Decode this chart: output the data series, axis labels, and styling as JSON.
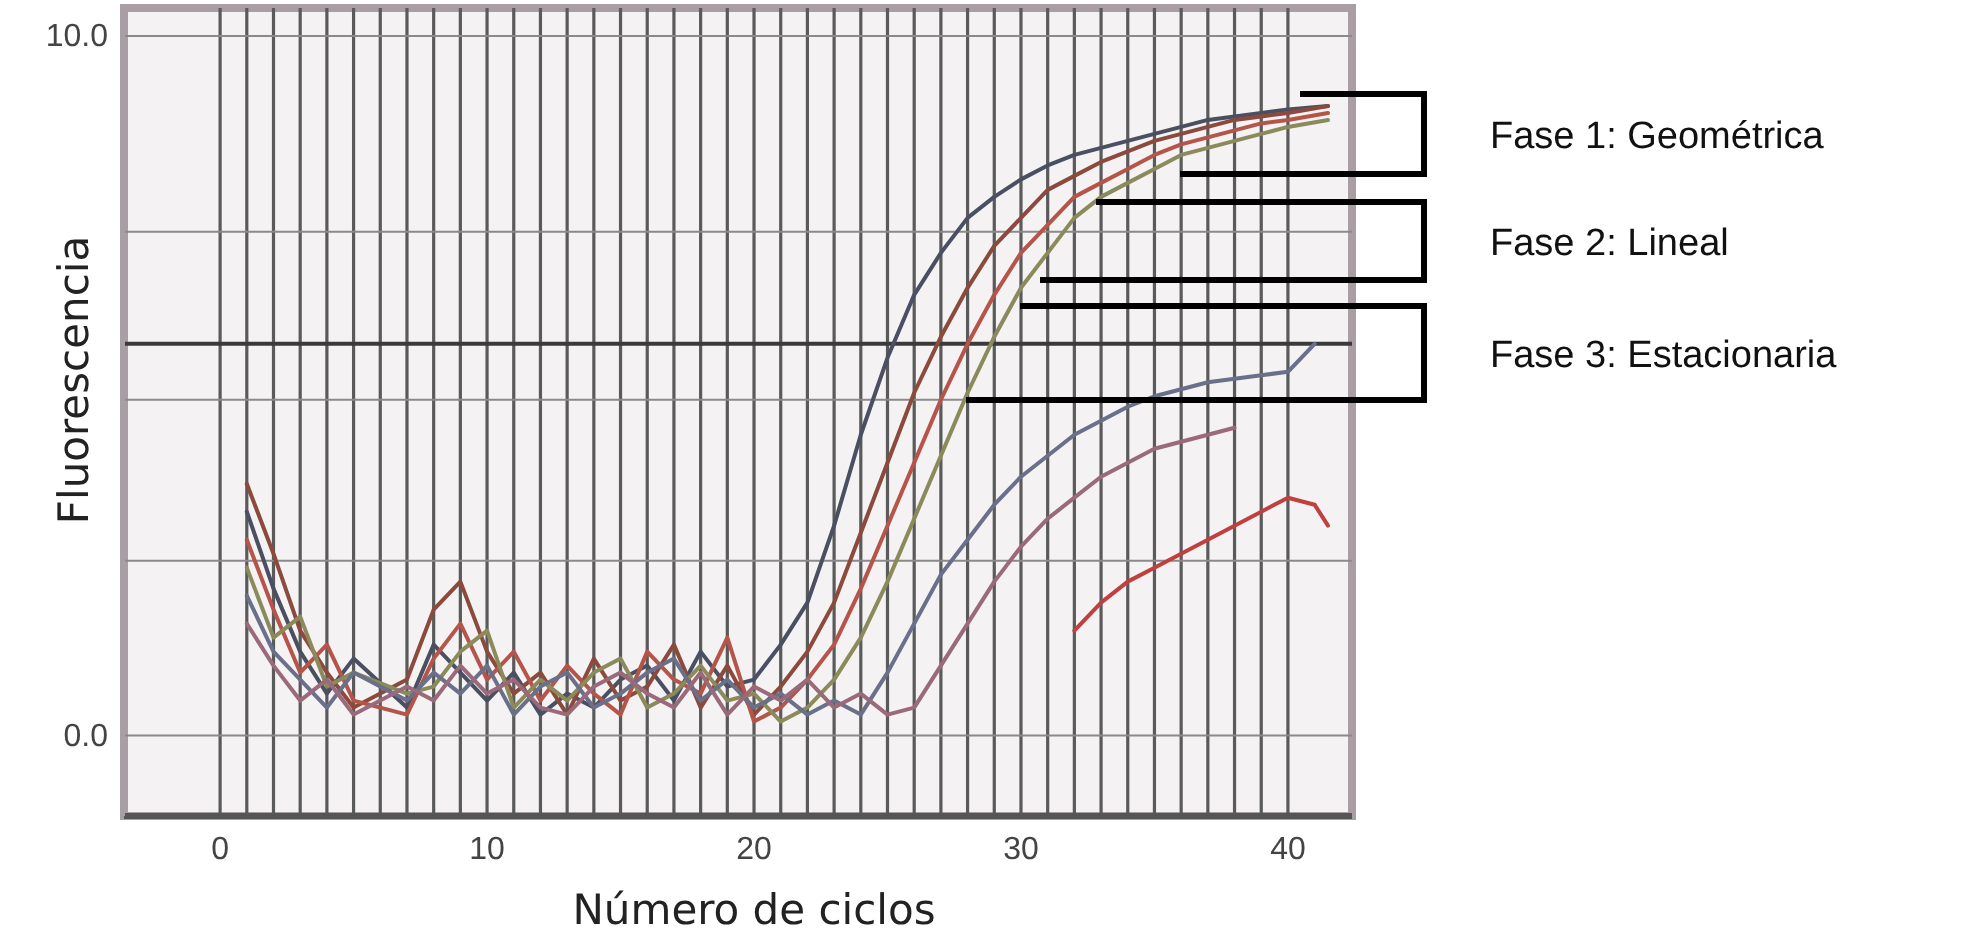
{
  "chart_data": {
    "type": "line",
    "xlabel": "Número de ciclos",
    "ylabel": "Fluorescencia",
    "xlim": [
      -3.6,
      42.4
    ],
    "ylim": [
      -1.15,
      10.4
    ],
    "xticks": [
      0,
      {
        "value": 1,
        "label": null
      },
      {
        "value": 2,
        "label": null
      },
      {
        "value": 3,
        "label": null
      },
      {
        "value": 4,
        "label": null
      },
      {
        "value": 5,
        "label": null
      },
      {
        "value": 6,
        "label": null
      },
      {
        "value": 7,
        "label": null
      },
      {
        "value": 8,
        "label": null
      },
      {
        "value": 9,
        "label": null
      },
      10,
      {
        "value": 11,
        "label": null
      },
      {
        "value": 12,
        "label": null
      },
      {
        "value": 13,
        "label": null
      },
      {
        "value": 14,
        "label": null
      },
      {
        "value": 15,
        "label": null
      },
      {
        "value": 16,
        "label": null
      },
      {
        "value": 17,
        "label": null
      },
      {
        "value": 18,
        "label": null
      },
      {
        "value": 19,
        "label": null
      },
      20,
      {
        "value": 21,
        "label": null
      },
      {
        "value": 22,
        "label": null
      },
      {
        "value": 23,
        "label": null
      },
      {
        "value": 24,
        "label": null
      },
      {
        "value": 25,
        "label": null
      },
      {
        "value": 26,
        "label": null
      },
      {
        "value": 27,
        "label": null
      },
      {
        "value": 28,
        "label": null
      },
      {
        "value": 29,
        "label": null
      },
      30,
      {
        "value": 31,
        "label": null
      },
      {
        "value": 32,
        "label": null
      },
      {
        "value": 33,
        "label": null
      },
      {
        "value": 34,
        "label": null
      },
      {
        "value": 35,
        "label": null
      },
      {
        "value": 36,
        "label": null
      },
      {
        "value": 37,
        "label": null
      },
      {
        "value": 38,
        "label": null
      },
      {
        "value": 39,
        "label": null
      },
      40
    ],
    "yticks": [
      {
        "value": 0,
        "label": "0.0"
      },
      {
        "value": 2.5,
        "label": null
      },
      {
        "value": 4.8,
        "label": null
      },
      {
        "value": 7.2,
        "label": null
      },
      {
        "value": 10,
        "label": "10.0"
      }
    ],
    "grid": true,
    "ref_lines": [
      {
        "axis": "y",
        "value": 5.6,
        "color": "#3a3a3a"
      }
    ],
    "annotations": [
      "Fase 1: Geométrica",
      "Fase 2: Lineal",
      "Fase 3: Estacionaria"
    ],
    "series": [
      {
        "color": "#4a4f62",
        "x": [
          1,
          2,
          3,
          4,
          5,
          7,
          8,
          9,
          10,
          11,
          12,
          13,
          14,
          15,
          16,
          17,
          18,
          19,
          20,
          21,
          22,
          23,
          24,
          25,
          26,
          27,
          28,
          29,
          30,
          31,
          32,
          33,
          34,
          35,
          36,
          37,
          38,
          39,
          40,
          41.5
        ],
        "values": [
          3.2,
          2.1,
          1.2,
          0.6,
          1.1,
          0.4,
          1.3,
          0.9,
          0.5,
          0.9,
          0.3,
          0.6,
          0.4,
          0.8,
          1.0,
          0.5,
          1.2,
          0.7,
          0.8,
          1.3,
          1.9,
          3.0,
          4.3,
          5.4,
          6.3,
          6.9,
          7.4,
          7.7,
          7.95,
          8.15,
          8.3,
          8.4,
          8.5,
          8.6,
          8.7,
          8.8,
          8.85,
          8.9,
          8.95,
          9.0
        ]
      },
      {
        "color": "#8b4a3c",
        "x": [
          1,
          2,
          3,
          4,
          5,
          7,
          8,
          9,
          10,
          11,
          12,
          13,
          14,
          15,
          16,
          17,
          18,
          19,
          20,
          21,
          22,
          23,
          24,
          25,
          26,
          27,
          28,
          29,
          30,
          31,
          32,
          33,
          34,
          35,
          36,
          37,
          38,
          39,
          40,
          41.5
        ],
        "values": [
          3.6,
          2.6,
          1.5,
          0.9,
          0.4,
          0.8,
          1.8,
          2.2,
          1.2,
          0.6,
          0.9,
          0.3,
          1.1,
          0.5,
          0.7,
          1.3,
          0.4,
          1.0,
          0.3,
          0.7,
          1.2,
          1.9,
          2.9,
          3.9,
          4.9,
          5.7,
          6.4,
          7.0,
          7.4,
          7.8,
          8.0,
          8.2,
          8.35,
          8.5,
          8.6,
          8.7,
          8.8,
          8.85,
          8.9,
          9.0
        ]
      },
      {
        "color": "#b5554a",
        "x": [
          1,
          2,
          3,
          4,
          5,
          7,
          8,
          9,
          10,
          11,
          12,
          13,
          14,
          15,
          16,
          17,
          18,
          19,
          20,
          21,
          22,
          23,
          24,
          25,
          26,
          27,
          28,
          29,
          30,
          31,
          32,
          33,
          34,
          35,
          36,
          37,
          38,
          39,
          40,
          41.5
        ],
        "values": [
          2.8,
          1.8,
          0.9,
          1.3,
          0.5,
          0.3,
          1.1,
          1.6,
          0.8,
          1.2,
          0.5,
          1.0,
          0.6,
          0.3,
          1.2,
          0.8,
          0.6,
          1.4,
          0.2,
          0.4,
          0.8,
          1.3,
          2.1,
          3.0,
          3.9,
          4.8,
          5.6,
          6.3,
          6.9,
          7.3,
          7.7,
          7.9,
          8.1,
          8.3,
          8.45,
          8.55,
          8.65,
          8.75,
          8.8,
          8.9
        ]
      },
      {
        "color": "#8a8a5a",
        "x": [
          1,
          2,
          3,
          4,
          5,
          7,
          8,
          9,
          10,
          11,
          12,
          13,
          14,
          15,
          16,
          17,
          18,
          19,
          20,
          21,
          22,
          23,
          24,
          25,
          26,
          27,
          28,
          29,
          30,
          31,
          32,
          33,
          34,
          35,
          36,
          37,
          38,
          39,
          40,
          41.5
        ],
        "values": [
          2.4,
          1.4,
          1.7,
          0.7,
          0.9,
          0.6,
          0.7,
          1.2,
          1.5,
          0.4,
          0.8,
          0.5,
          0.9,
          1.1,
          0.4,
          0.6,
          1.0,
          0.5,
          0.6,
          0.2,
          0.4,
          0.8,
          1.4,
          2.2,
          3.1,
          4.0,
          4.9,
          5.7,
          6.4,
          6.9,
          7.4,
          7.7,
          7.9,
          8.1,
          8.3,
          8.4,
          8.5,
          8.6,
          8.7,
          8.8
        ]
      },
      {
        "color": "#6a6f8a",
        "x": [
          1,
          2,
          3,
          4,
          5,
          7,
          8,
          9,
          10,
          11,
          12,
          13,
          14,
          15,
          16,
          17,
          18,
          19,
          20,
          21,
          22,
          23,
          24,
          25,
          26,
          27,
          28,
          29,
          30,
          31,
          32,
          33,
          34,
          35,
          36,
          37,
          38,
          39,
          40,
          41
        ],
        "values": [
          2.0,
          1.2,
          0.8,
          0.4,
          0.9,
          0.5,
          0.9,
          0.6,
          1.0,
          0.3,
          0.7,
          0.9,
          0.4,
          0.6,
          0.9,
          1.1,
          0.5,
          0.8,
          0.4,
          0.6,
          0.3,
          0.5,
          0.3,
          0.9,
          1.6,
          2.3,
          2.8,
          3.3,
          3.7,
          4.0,
          4.3,
          4.5,
          4.7,
          4.85,
          4.95,
          5.05,
          5.1,
          5.15,
          5.2,
          5.6
        ]
      },
      {
        "color": "#9a6a7a",
        "x": [
          1,
          2,
          3,
          4,
          5,
          7,
          8,
          9,
          10,
          11,
          12,
          13,
          14,
          15,
          16,
          17,
          18,
          19,
          20,
          21,
          22,
          23,
          24,
          25,
          26,
          27,
          28,
          29,
          30,
          31,
          32,
          33,
          34,
          35,
          36,
          37,
          38
        ],
        "values": [
          1.6,
          1.0,
          0.5,
          0.8,
          0.3,
          0.7,
          0.5,
          1.0,
          0.6,
          0.8,
          0.4,
          0.3,
          0.7,
          0.9,
          0.6,
          0.4,
          0.9,
          0.3,
          0.7,
          0.5,
          0.8,
          0.4,
          0.6,
          0.3,
          0.4,
          1.0,
          1.6,
          2.2,
          2.7,
          3.1,
          3.4,
          3.7,
          3.9,
          4.1,
          4.2,
          4.3,
          4.4
        ]
      },
      {
        "color": "#c04040",
        "x": [
          32,
          33,
          34,
          35,
          36,
          37,
          38,
          39,
          40,
          41,
          41.5
        ],
        "values": [
          1.5,
          1.9,
          2.2,
          2.4,
          2.6,
          2.8,
          3.0,
          3.2,
          3.4,
          3.3,
          3.0
        ]
      }
    ]
  }
}
